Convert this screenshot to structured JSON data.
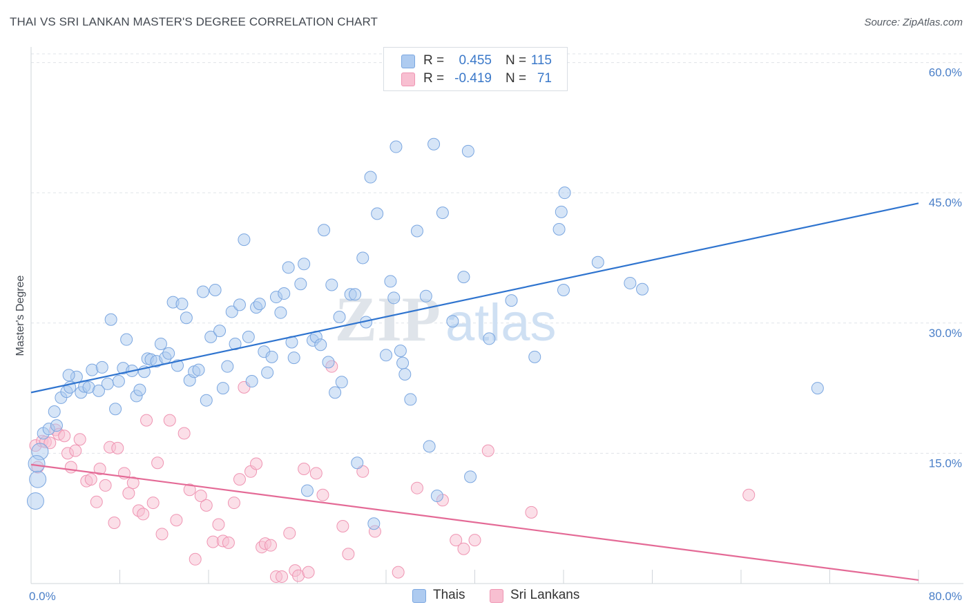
{
  "title": "THAI VS SRI LANKAN MASTER'S DEGREE CORRELATION CHART",
  "source": "Source: ZipAtlas.com",
  "watermark": {
    "zip": "ZIP",
    "atlas": "atlas"
  },
  "colors": {
    "thai_fill": "#aecbf0",
    "thai_stroke": "#7aa6e0",
    "thai_line": "#2f74cf",
    "sri_fill": "#f8bfd1",
    "sri_stroke": "#ef94b2",
    "sri_line": "#e46a96",
    "tick_text": "#4a7fc8",
    "grid": "#dfe3e8"
  },
  "legend": {
    "rows": [
      {
        "r_label": "R =",
        "r_value": "0.455",
        "n_label": "N =",
        "n_value": "115"
      },
      {
        "r_label": "R =",
        "r_value": "-0.419",
        "n_label": "N =",
        "n_value": "71"
      }
    ]
  },
  "bottom_legend": {
    "thai": "Thais",
    "sri": "Sri Lankans"
  },
  "chart_data": {
    "type": "scatter",
    "title": "THAI VS SRI LANKAN MASTER'S DEGREE CORRELATION CHART",
    "xlabel": "",
    "ylabel": "Master's Degree",
    "xlim": [
      0,
      80
    ],
    "ylim": [
      0,
      61
    ],
    "x_tick_labels": [
      "0.0%",
      "80.0%"
    ],
    "y_ticks": [
      15,
      30,
      45,
      60
    ],
    "y_tick_labels": [
      "15.0%",
      "30.0%",
      "45.0%",
      "60.0%"
    ],
    "grid": true,
    "legend_position": "top-center",
    "series": [
      {
        "name": "Thais",
        "trend": {
          "x": [
            0,
            80
          ],
          "y": [
            22.0,
            43.8
          ]
        },
        "points": [
          [
            0.4,
            9.5
          ],
          [
            0.6,
            12.0
          ],
          [
            0.8,
            15.2
          ],
          [
            1.1,
            17.3
          ],
          [
            1.6,
            17.8
          ],
          [
            2.1,
            19.8
          ],
          [
            2.3,
            18.2
          ],
          [
            2.7,
            21.4
          ],
          [
            3.2,
            22.1
          ],
          [
            3.5,
            22.6
          ],
          [
            4.1,
            23.8
          ],
          [
            4.5,
            22.0
          ],
          [
            4.8,
            22.7
          ],
          [
            5.2,
            22.6
          ],
          [
            5.5,
            24.6
          ],
          [
            6.1,
            22.2
          ],
          [
            6.4,
            24.9
          ],
          [
            6.9,
            23.0
          ],
          [
            7.2,
            30.4
          ],
          [
            7.6,
            20.1
          ],
          [
            7.9,
            23.3
          ],
          [
            8.3,
            24.8
          ],
          [
            8.6,
            28.1
          ],
          [
            9.1,
            24.5
          ],
          [
            9.5,
            21.6
          ],
          [
            9.8,
            22.3
          ],
          [
            10.2,
            24.4
          ],
          [
            10.5,
            25.9
          ],
          [
            10.8,
            25.8
          ],
          [
            11.3,
            25.6
          ],
          [
            11.7,
            27.6
          ],
          [
            12.1,
            26.0
          ],
          [
            12.4,
            26.5
          ],
          [
            12.8,
            32.4
          ],
          [
            13.2,
            25.1
          ],
          [
            13.6,
            32.2
          ],
          [
            14.0,
            30.6
          ],
          [
            14.3,
            23.4
          ],
          [
            14.7,
            24.4
          ],
          [
            15.1,
            24.6
          ],
          [
            15.5,
            33.6
          ],
          [
            15.8,
            21.1
          ],
          [
            16.2,
            28.4
          ],
          [
            16.6,
            33.8
          ],
          [
            17.0,
            29.1
          ],
          [
            17.3,
            22.5
          ],
          [
            17.7,
            25.0
          ],
          [
            18.1,
            31.3
          ],
          [
            18.4,
            27.6
          ],
          [
            18.8,
            32.1
          ],
          [
            19.2,
            39.6
          ],
          [
            19.6,
            28.4
          ],
          [
            19.9,
            23.3
          ],
          [
            20.3,
            31.8
          ],
          [
            20.6,
            32.2
          ],
          [
            21.0,
            26.7
          ],
          [
            21.3,
            24.3
          ],
          [
            21.7,
            26.1
          ],
          [
            22.1,
            33.0
          ],
          [
            22.5,
            31.2
          ],
          [
            22.8,
            33.4
          ],
          [
            23.2,
            36.4
          ],
          [
            23.5,
            27.8
          ],
          [
            23.7,
            26.0
          ],
          [
            24.3,
            34.5
          ],
          [
            24.6,
            36.8
          ],
          [
            24.9,
            10.7
          ],
          [
            25.4,
            28.0
          ],
          [
            25.7,
            28.4
          ],
          [
            26.1,
            27.5
          ],
          [
            26.4,
            40.7
          ],
          [
            26.8,
            25.5
          ],
          [
            27.1,
            34.4
          ],
          [
            27.4,
            22.0
          ],
          [
            27.8,
            30.7
          ],
          [
            28.0,
            23.2
          ],
          [
            28.8,
            33.3
          ],
          [
            29.2,
            33.3
          ],
          [
            29.4,
            13.9
          ],
          [
            29.9,
            37.5
          ],
          [
            30.2,
            30.1
          ],
          [
            30.6,
            46.8
          ],
          [
            30.9,
            6.9
          ],
          [
            31.2,
            42.6
          ],
          [
            32.0,
            26.3
          ],
          [
            32.4,
            34.8
          ],
          [
            32.7,
            32.9
          ],
          [
            32.9,
            50.3
          ],
          [
            33.3,
            26.8
          ],
          [
            33.5,
            25.4
          ],
          [
            33.7,
            24.1
          ],
          [
            34.2,
            21.2
          ],
          [
            34.8,
            40.6
          ],
          [
            35.6,
            33.1
          ],
          [
            35.9,
            15.8
          ],
          [
            36.3,
            50.6
          ],
          [
            36.6,
            10.1
          ],
          [
            37.1,
            42.7
          ],
          [
            38.0,
            30.2
          ],
          [
            39.0,
            35.3
          ],
          [
            39.4,
            49.8
          ],
          [
            39.6,
            12.3
          ],
          [
            41.3,
            28.2
          ],
          [
            43.3,
            32.6
          ],
          [
            45.4,
            26.1
          ],
          [
            47.6,
            40.8
          ],
          [
            47.8,
            42.8
          ],
          [
            48.1,
            45.0
          ],
          [
            48.0,
            33.8
          ],
          [
            51.1,
            37.0
          ],
          [
            54.0,
            34.6
          ],
          [
            55.1,
            33.9
          ],
          [
            70.9,
            22.5
          ],
          [
            0.5,
            13.8
          ],
          [
            3.4,
            24.0
          ]
        ]
      },
      {
        "name": "Sri Lankans",
        "trend": {
          "x": [
            0,
            80
          ],
          "y": [
            13.7,
            0.4
          ]
        },
        "points": [
          [
            0.4,
            15.9
          ],
          [
            0.6,
            13.4
          ],
          [
            1.0,
            16.4
          ],
          [
            1.3,
            16.3
          ],
          [
            1.7,
            16.2
          ],
          [
            2.2,
            17.7
          ],
          [
            2.5,
            17.2
          ],
          [
            3.0,
            17.0
          ],
          [
            3.3,
            15.0
          ],
          [
            3.6,
            13.4
          ],
          [
            4.0,
            15.3
          ],
          [
            4.4,
            16.6
          ],
          [
            5.0,
            11.8
          ],
          [
            5.4,
            12.0
          ],
          [
            5.9,
            9.4
          ],
          [
            6.2,
            13.2
          ],
          [
            6.7,
            11.3
          ],
          [
            7.1,
            15.7
          ],
          [
            7.5,
            7.0
          ],
          [
            7.8,
            15.6
          ],
          [
            8.4,
            12.7
          ],
          [
            8.8,
            10.4
          ],
          [
            9.2,
            11.6
          ],
          [
            9.7,
            8.4
          ],
          [
            10.1,
            8.0
          ],
          [
            10.4,
            18.8
          ],
          [
            11.0,
            9.3
          ],
          [
            11.4,
            13.9
          ],
          [
            11.8,
            5.7
          ],
          [
            12.5,
            18.8
          ],
          [
            13.1,
            7.3
          ],
          [
            13.8,
            17.3
          ],
          [
            14.3,
            10.8
          ],
          [
            14.8,
            2.8
          ],
          [
            15.3,
            10.1
          ],
          [
            15.8,
            9.0
          ],
          [
            16.4,
            4.8
          ],
          [
            16.9,
            6.8
          ],
          [
            17.3,
            4.9
          ],
          [
            17.8,
            4.7
          ],
          [
            18.3,
            9.3
          ],
          [
            18.8,
            12.0
          ],
          [
            19.2,
            22.6
          ],
          [
            19.8,
            12.9
          ],
          [
            20.3,
            13.8
          ],
          [
            20.8,
            4.2
          ],
          [
            21.1,
            4.6
          ],
          [
            21.6,
            4.4
          ],
          [
            22.1,
            0.8
          ],
          [
            22.6,
            0.8
          ],
          [
            23.3,
            5.8
          ],
          [
            23.8,
            1.5
          ],
          [
            24.1,
            0.9
          ],
          [
            24.6,
            13.2
          ],
          [
            25.0,
            1.3
          ],
          [
            25.7,
            12.7
          ],
          [
            26.3,
            10.2
          ],
          [
            27.1,
            25.0
          ],
          [
            28.1,
            6.6
          ],
          [
            28.6,
            3.4
          ],
          [
            29.9,
            12.9
          ],
          [
            31.0,
            6.0
          ],
          [
            33.1,
            1.3
          ],
          [
            34.8,
            11.0
          ],
          [
            37.1,
            9.6
          ],
          [
            38.3,
            5.0
          ],
          [
            39.0,
            4.0
          ],
          [
            40.0,
            5.0
          ],
          [
            41.2,
            15.3
          ],
          [
            45.1,
            8.2
          ],
          [
            64.7,
            10.2
          ]
        ]
      }
    ]
  }
}
